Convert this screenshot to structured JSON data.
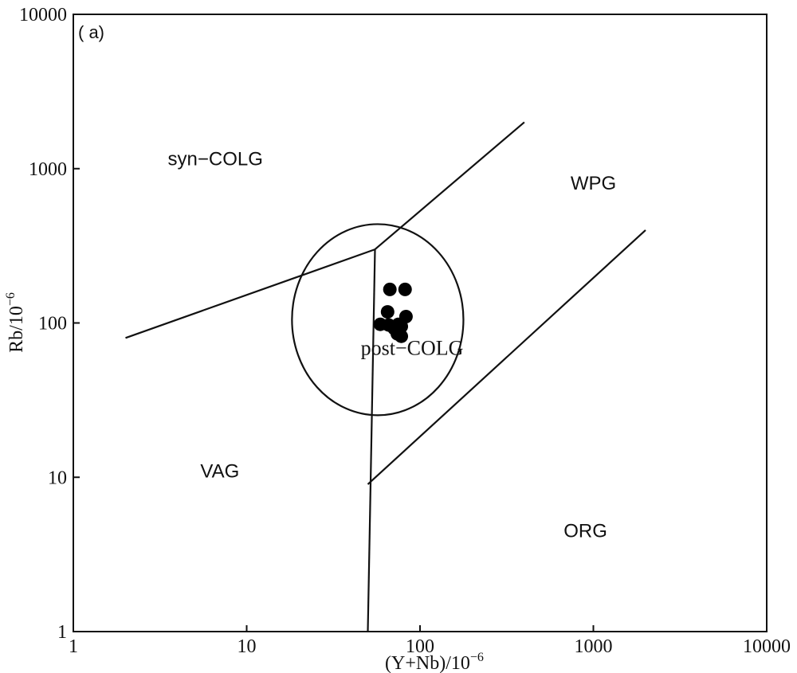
{
  "chart_data": {
    "type": "scatter",
    "panel_label": "( a)",
    "xlabel": "(Y+Nb)/10",
    "xlabel_sup": "−6",
    "ylabel": "Rb/10",
    "ylabel_sup": "−6",
    "x_scale": "log",
    "y_scale": "log",
    "xlim": [
      1,
      10000
    ],
    "ylim": [
      1,
      10000
    ],
    "x_ticks": [
      {
        "value": 1,
        "label": "1"
      },
      {
        "value": 10,
        "label": "10"
      },
      {
        "value": 100,
        "label": "100"
      },
      {
        "value": 1000,
        "label": "1000"
      },
      {
        "value": 10000,
        "label": "10000"
      }
    ],
    "y_ticks": [
      {
        "value": 1,
        "label": "1"
      },
      {
        "value": 10,
        "label": "10"
      },
      {
        "value": 100,
        "label": "100"
      },
      {
        "value": 1000,
        "label": "1000"
      },
      {
        "value": 10000,
        "label": "10000"
      }
    ],
    "grid": false,
    "fields": [
      {
        "label": "syn−COLG",
        "x": 6.6,
        "y": 1050,
        "style": "sans"
      },
      {
        "label": "WPG",
        "x": 1000,
        "y": 730,
        "style": "sans"
      },
      {
        "label": "VAG",
        "x": 7.0,
        "y": 10,
        "style": "sans"
      },
      {
        "label": "ORG",
        "x": 900,
        "y": 4.1,
        "style": "sans"
      },
      {
        "label": "post−COLG",
        "x": 90,
        "y": 62,
        "style": "serif"
      }
    ],
    "boundaries": [
      {
        "name": "syn-colg-vag",
        "points": [
          [
            2,
            80
          ],
          [
            55,
            300
          ]
        ]
      },
      {
        "name": "syn-colg-wpg",
        "points": [
          [
            55,
            300
          ],
          [
            400,
            2000
          ]
        ]
      },
      {
        "name": "vag-org",
        "points": [
          [
            55,
            300
          ],
          [
            50,
            1
          ]
        ]
      },
      {
        "name": "wpg-org",
        "points": [
          [
            50,
            9
          ],
          [
            2000,
            400
          ]
        ]
      }
    ],
    "ellipse": {
      "center": [
        57,
        105
      ],
      "span_x": [
        20,
        195
      ],
      "span_y": [
        26,
        450
      ]
    },
    "points": [
      {
        "x": 67,
        "y": 165
      },
      {
        "x": 82,
        "y": 165
      },
      {
        "x": 65,
        "y": 118
      },
      {
        "x": 83,
        "y": 110
      },
      {
        "x": 59,
        "y": 98
      },
      {
        "x": 66,
        "y": 97
      },
      {
        "x": 71,
        "y": 92
      },
      {
        "x": 75,
        "y": 98
      },
      {
        "x": 78,
        "y": 95
      },
      {
        "x": 74,
        "y": 85
      },
      {
        "x": 78,
        "y": 82
      }
    ]
  }
}
